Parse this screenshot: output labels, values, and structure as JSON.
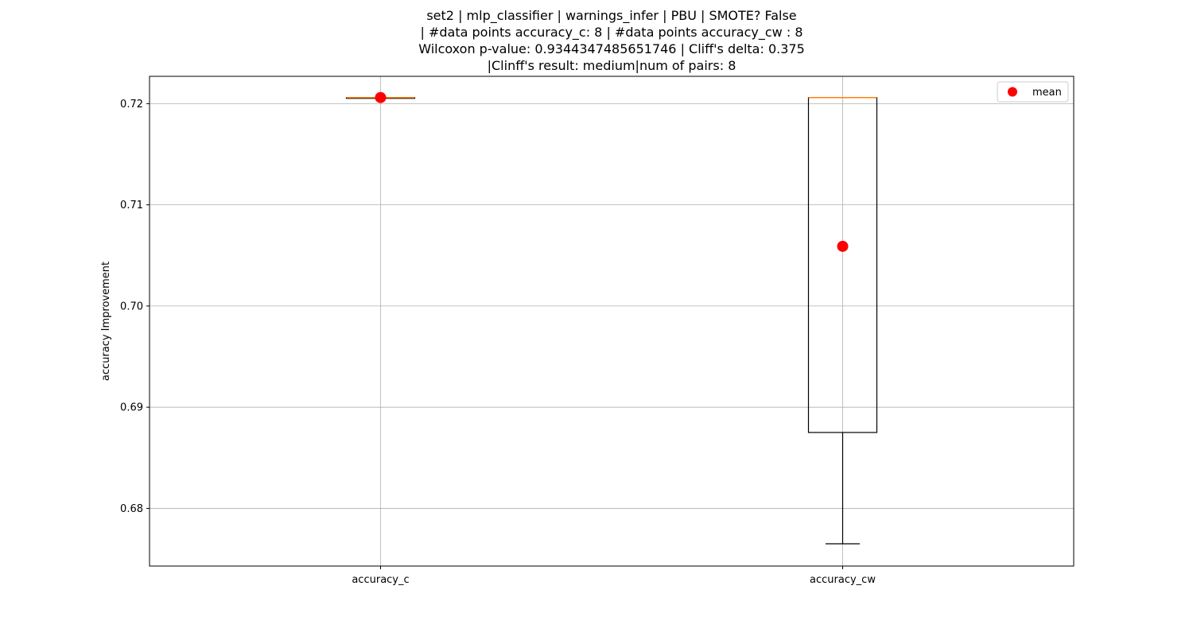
{
  "chart_data": {
    "type": "box",
    "title_lines": [
      "set2 | mlp_classifier | warnings_infer | PBU | SMOTE? False",
      " | #data points accuracy_c: 8 | #data points accuracy_cw : 8",
      "Wilcoxon p-value: 0.9344347485651746 | Cliff's delta: 0.375",
      "|Clinff's result: medium|num of pairs: 8"
    ],
    "ylabel": "accuracy Improvement",
    "xlabel": "",
    "ylim": [
      0.6743,
      0.7227
    ],
    "yticks": [
      0.68,
      0.69,
      0.7,
      0.71,
      0.72
    ],
    "ytick_labels": [
      "0.68",
      "0.69",
      "0.70",
      "0.71",
      "0.72"
    ],
    "grid": true,
    "legend": {
      "placement": "upper right",
      "entries": [
        "mean"
      ]
    },
    "categories": [
      "accuracy_c",
      "accuracy_cw"
    ],
    "boxes": [
      {
        "name": "accuracy_c",
        "whisker_low": 0.7206,
        "q1": 0.7206,
        "median": 0.7206,
        "q3": 0.7206,
        "whisker_high": 0.7206,
        "mean": 0.7206
      },
      {
        "name": "accuracy_cw",
        "whisker_low": 0.6765,
        "q1": 0.6875,
        "median": 0.7206,
        "q3": 0.7206,
        "whisker_high": 0.7206,
        "mean": 0.7059
      }
    ],
    "colors": {
      "box": "#000000",
      "median": "#ff7f0e",
      "mean": "#ff0000",
      "grid": "#b0b0b0"
    }
  }
}
